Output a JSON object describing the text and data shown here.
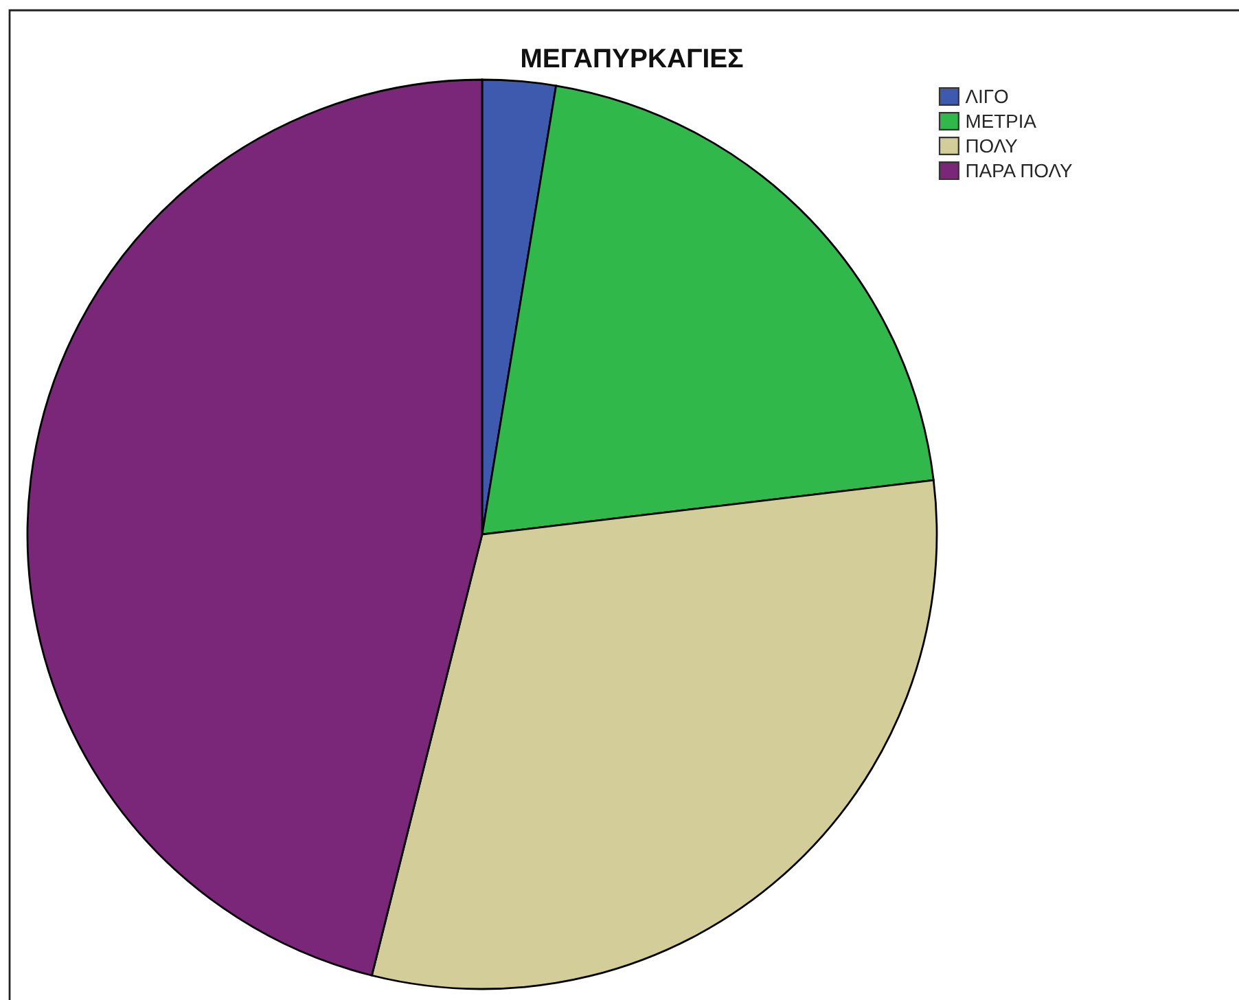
{
  "chart_data": {
    "type": "pie",
    "title": "ΜΕΓΑΠΥΡΚΑΓΙΕΣ",
    "categories": [
      "ΛΙΓΟ",
      "ΜΕΤΡΙΑ",
      "ΠΟΛΥ",
      "ΠΑΡΑ ΠΟΛΥ"
    ],
    "values": [
      2.6,
      20.5,
      30.8,
      46.1
    ],
    "colors": [
      "#3d5aae",
      "#30b84a",
      "#d3cd9a",
      "#7a2679"
    ],
    "legend": "top right"
  }
}
